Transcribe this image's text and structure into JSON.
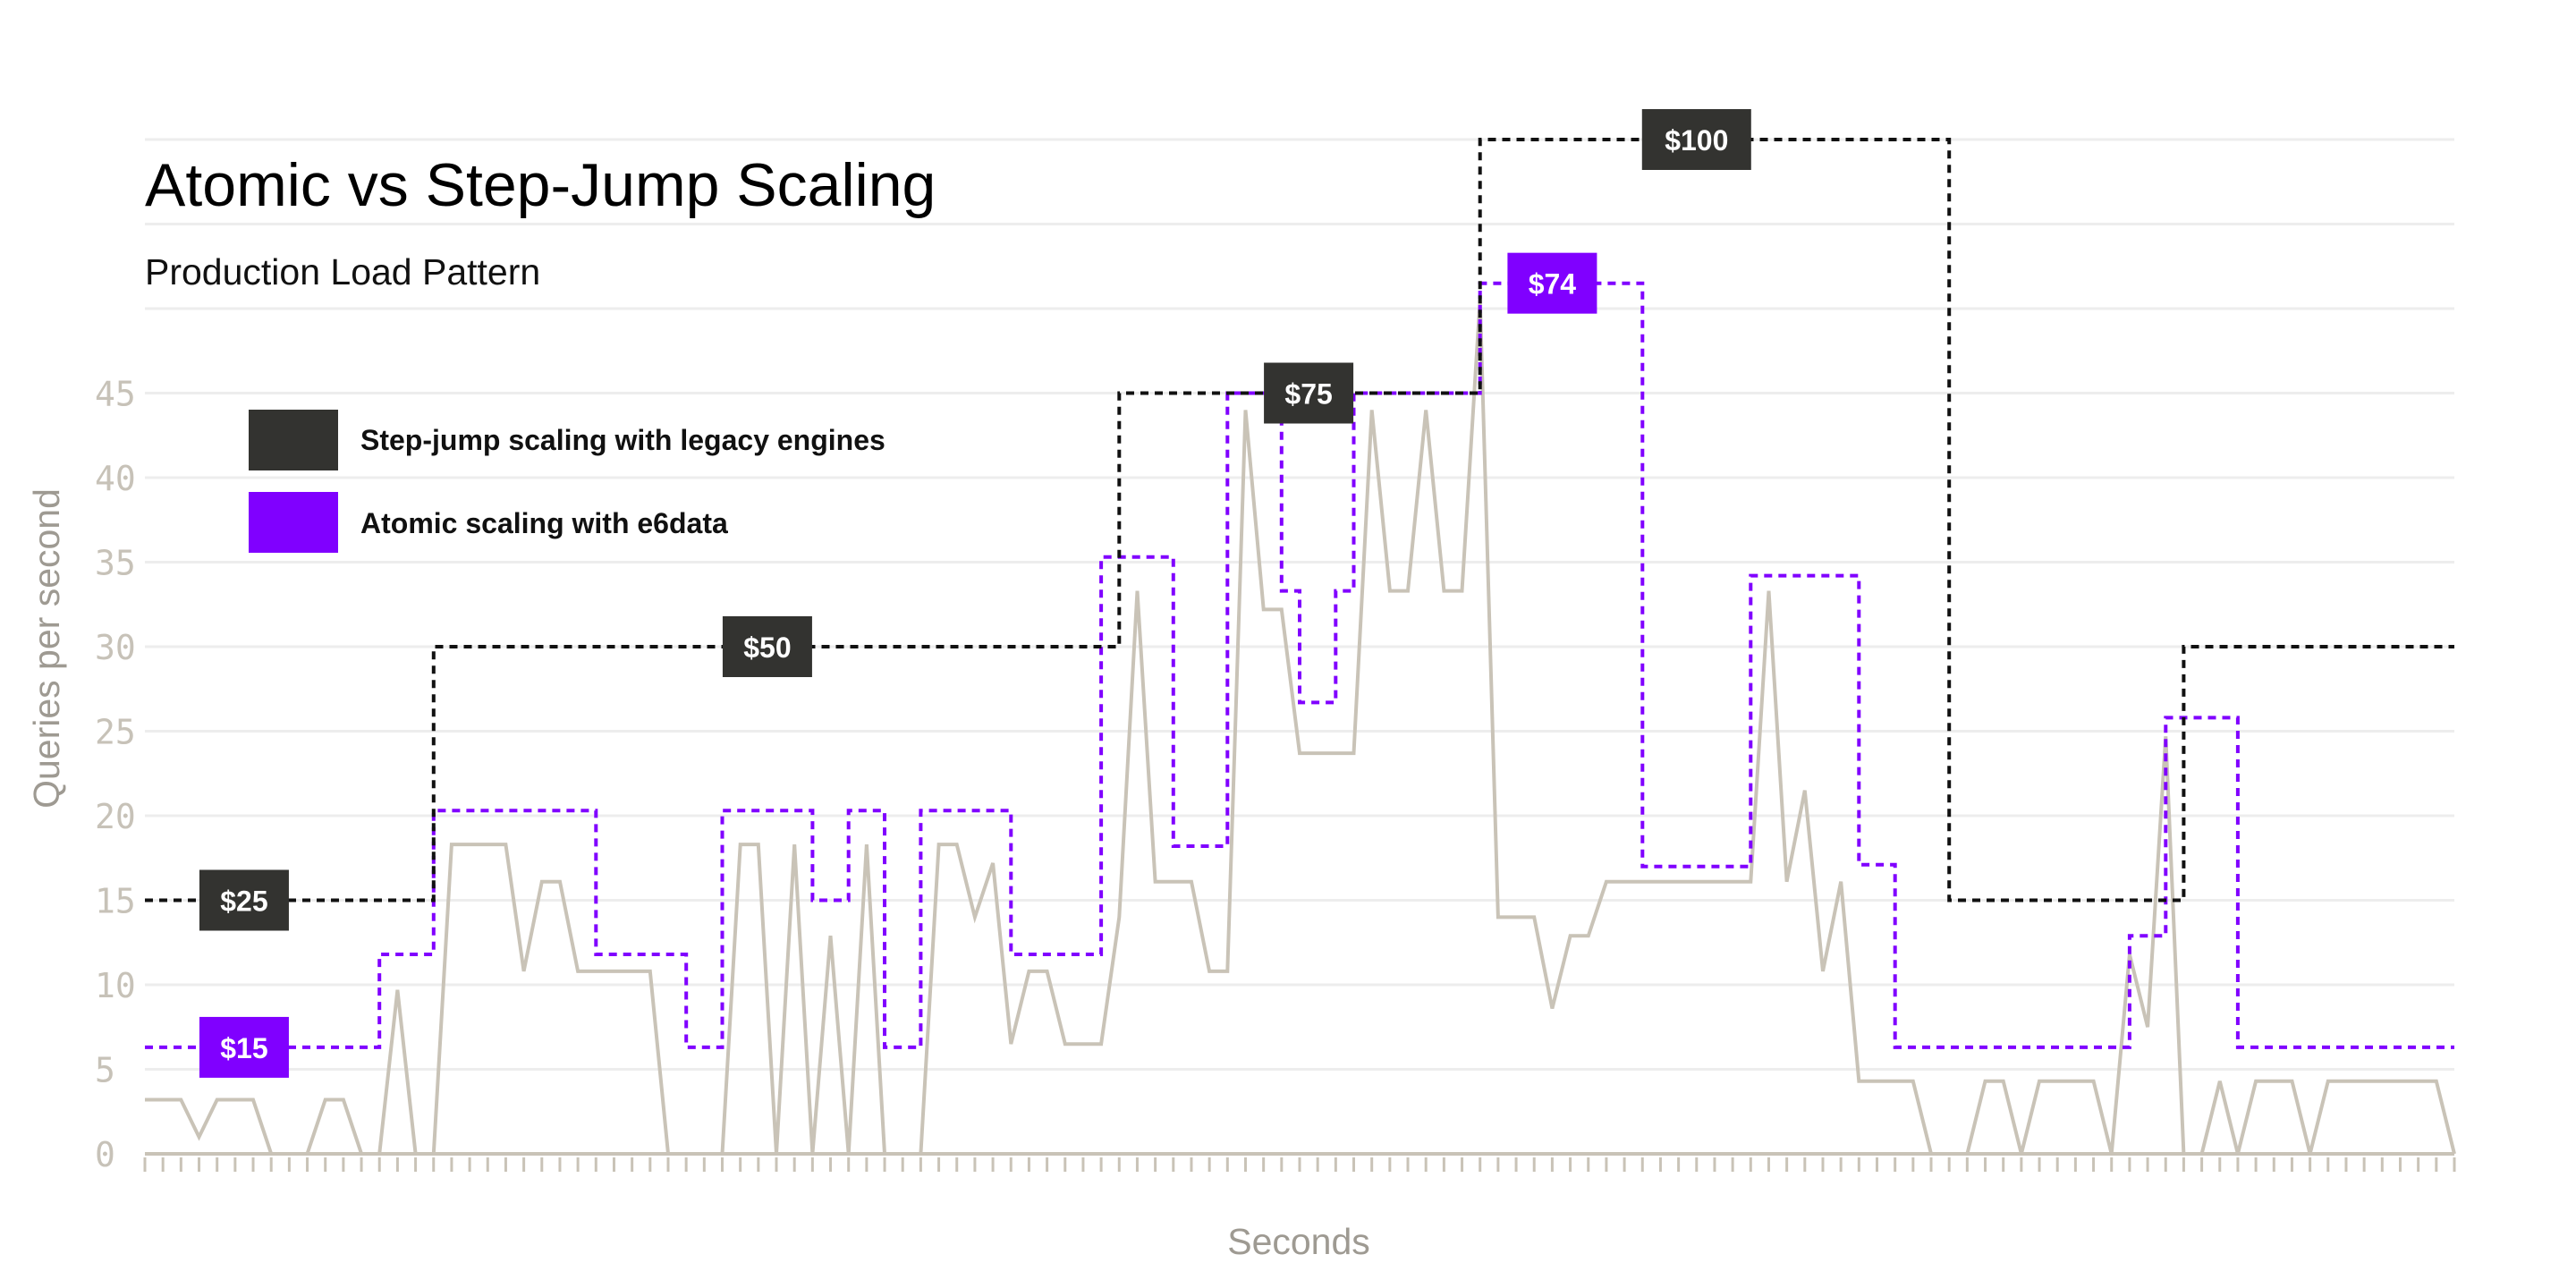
{
  "chart_data": {
    "type": "line",
    "title": "Atomic vs Step-Jump Scaling",
    "subtitle": "Production Load Pattern",
    "xlabel": "Seconds",
    "ylabel": "Queries per second",
    "y_ticks": [
      "0",
      "5",
      "10",
      "15",
      "20",
      "25",
      "30",
      "35",
      "40",
      "45"
    ],
    "ylim": [
      0,
      45
    ],
    "xlim": [
      0,
      128
    ],
    "grid": true,
    "legend_position": "top-left",
    "legend": [
      {
        "label": "Step-jump scaling with legacy engines",
        "color": "#333330"
      },
      {
        "label": "Atomic scaling with e6data",
        "color": "#8000ff"
      }
    ],
    "series": [
      {
        "name": "Step-jump scaling with legacy engines",
        "style": "dashed-step",
        "color": "#111111",
        "points": [
          [
            0,
            15
          ],
          [
            16,
            15
          ],
          [
            16,
            30
          ],
          [
            54,
            30
          ],
          [
            54,
            45
          ],
          [
            74,
            45
          ],
          [
            74,
            60
          ],
          [
            100,
            60
          ],
          [
            100,
            15
          ],
          [
            113,
            15
          ],
          [
            113,
            30
          ],
          [
            128,
            30
          ]
        ]
      },
      {
        "name": "Atomic scaling with e6data",
        "style": "dashed-step",
        "color": "#8000ff",
        "points": [
          [
            0,
            6.3
          ],
          [
            13,
            6.3
          ],
          [
            13,
            11.8
          ],
          [
            16,
            11.8
          ],
          [
            16,
            20.3
          ],
          [
            25,
            20.3
          ],
          [
            25,
            11.8
          ],
          [
            30,
            11.8
          ],
          [
            30,
            6.3
          ],
          [
            32,
            6.3
          ],
          [
            32,
            20.3
          ],
          [
            37,
            20.3
          ],
          [
            37,
            15
          ],
          [
            39,
            15
          ],
          [
            39,
            20.3
          ],
          [
            41,
            20.3
          ],
          [
            41,
            6.3
          ],
          [
            43,
            6.3
          ],
          [
            43,
            20.3
          ],
          [
            48,
            20.3
          ],
          [
            48,
            11.8
          ],
          [
            53,
            11.8
          ],
          [
            53,
            35.3
          ],
          [
            57,
            35.3
          ],
          [
            57,
            18.2
          ],
          [
            60,
            18.2
          ],
          [
            60,
            45
          ],
          [
            63,
            45
          ],
          [
            63,
            33.3
          ],
          [
            64,
            33.3
          ],
          [
            64,
            26.7
          ],
          [
            66,
            26.7
          ],
          [
            66,
            33.3
          ],
          [
            67,
            33.3
          ],
          [
            67,
            45
          ],
          [
            74,
            45
          ],
          [
            74,
            51.5
          ],
          [
            83,
            51.5
          ],
          [
            83,
            17
          ],
          [
            89,
            17
          ],
          [
            89,
            34.2
          ],
          [
            95,
            34.2
          ],
          [
            95,
            17.1
          ],
          [
            97,
            17.1
          ],
          [
            97,
            6.3
          ],
          [
            110,
            6.3
          ],
          [
            110,
            12.9
          ],
          [
            112,
            12.9
          ],
          [
            112,
            25.8
          ],
          [
            116,
            25.8
          ],
          [
            116,
            6.3
          ],
          [
            128,
            6.3
          ]
        ]
      },
      {
        "name": "Queries per second",
        "style": "solid",
        "color": "#c9c3b7",
        "points": [
          [
            0,
            3.2
          ],
          [
            2,
            3.2
          ],
          [
            3,
            1
          ],
          [
            4,
            3.2
          ],
          [
            6,
            3.2
          ],
          [
            7,
            0
          ],
          [
            9,
            0
          ],
          [
            10,
            3.2
          ],
          [
            11,
            3.2
          ],
          [
            12,
            0
          ],
          [
            13,
            0
          ],
          [
            14,
            9.7
          ],
          [
            15,
            0
          ],
          [
            16,
            0
          ],
          [
            17,
            18.3
          ],
          [
            20,
            18.3
          ],
          [
            21,
            10.8
          ],
          [
            22,
            16.1
          ],
          [
            23,
            16.1
          ],
          [
            24,
            10.8
          ],
          [
            28,
            10.8
          ],
          [
            29,
            0
          ],
          [
            32,
            0
          ],
          [
            33,
            18.3
          ],
          [
            34,
            18.3
          ],
          [
            35,
            0
          ],
          [
            36,
            18.3
          ],
          [
            37,
            0
          ],
          [
            38,
            12.9
          ],
          [
            39,
            0
          ],
          [
            40,
            18.3
          ],
          [
            41,
            0
          ],
          [
            43,
            0
          ],
          [
            44,
            18.3
          ],
          [
            45,
            18.3
          ],
          [
            46,
            14
          ],
          [
            47,
            17.2
          ],
          [
            48,
            6.5
          ],
          [
            49,
            10.8
          ],
          [
            50,
            10.8
          ],
          [
            51,
            6.5
          ],
          [
            53,
            6.5
          ],
          [
            54,
            14
          ],
          [
            55,
            33.3
          ],
          [
            56,
            16.1
          ],
          [
            58,
            16.1
          ],
          [
            59,
            10.8
          ],
          [
            60,
            10.8
          ],
          [
            61,
            44
          ],
          [
            62,
            32.2
          ],
          [
            63,
            32.2
          ],
          [
            64,
            23.7
          ],
          [
            67,
            23.7
          ],
          [
            68,
            44
          ],
          [
            69,
            33.3
          ],
          [
            70,
            33.3
          ],
          [
            71,
            44
          ],
          [
            72,
            33.3
          ],
          [
            73,
            33.3
          ],
          [
            74,
            50.5
          ],
          [
            75,
            14
          ],
          [
            77,
            14
          ],
          [
            78,
            8.6
          ],
          [
            79,
            12.9
          ],
          [
            80,
            12.9
          ],
          [
            81,
            16.1
          ],
          [
            89,
            16.1
          ],
          [
            90,
            33.3
          ],
          [
            91,
            16.1
          ],
          [
            92,
            21.5
          ],
          [
            93,
            10.8
          ],
          [
            94,
            16.1
          ],
          [
            95,
            4.3
          ],
          [
            98,
            4.3
          ],
          [
            99,
            0
          ],
          [
            101,
            0
          ],
          [
            102,
            4.3
          ],
          [
            103,
            4.3
          ],
          [
            104,
            0
          ],
          [
            105,
            4.3
          ],
          [
            108,
            4.3
          ],
          [
            109,
            0
          ],
          [
            110,
            11.8
          ],
          [
            111,
            7.5
          ],
          [
            112,
            24.7
          ],
          [
            113,
            0
          ],
          [
            114,
            0
          ],
          [
            115,
            4.3
          ],
          [
            116,
            0
          ],
          [
            117,
            4.3
          ],
          [
            119,
            4.3
          ],
          [
            120,
            0
          ],
          [
            121,
            4.3
          ],
          [
            126,
            4.3
          ],
          [
            127,
            4.3
          ],
          [
            128,
            0
          ]
        ]
      }
    ],
    "price_labels": [
      {
        "text": "$25",
        "series": "Step-jump scaling with legacy engines",
        "x": 5.5,
        "y": 15
      },
      {
        "text": "$50",
        "series": "Step-jump scaling with legacy engines",
        "x": 34.5,
        "y": 30
      },
      {
        "text": "$75",
        "series": "Step-jump scaling with legacy engines",
        "x": 64.5,
        "y": 45
      },
      {
        "text": "$100",
        "series": "Step-jump scaling with legacy engines",
        "x": 86,
        "y": 60
      },
      {
        "text": "$15",
        "series": "Atomic scaling with e6data",
        "x": 5.5,
        "y": 6.3
      },
      {
        "text": "$74",
        "series": "Atomic scaling with e6data",
        "x": 78,
        "y": 51.5
      }
    ]
  }
}
